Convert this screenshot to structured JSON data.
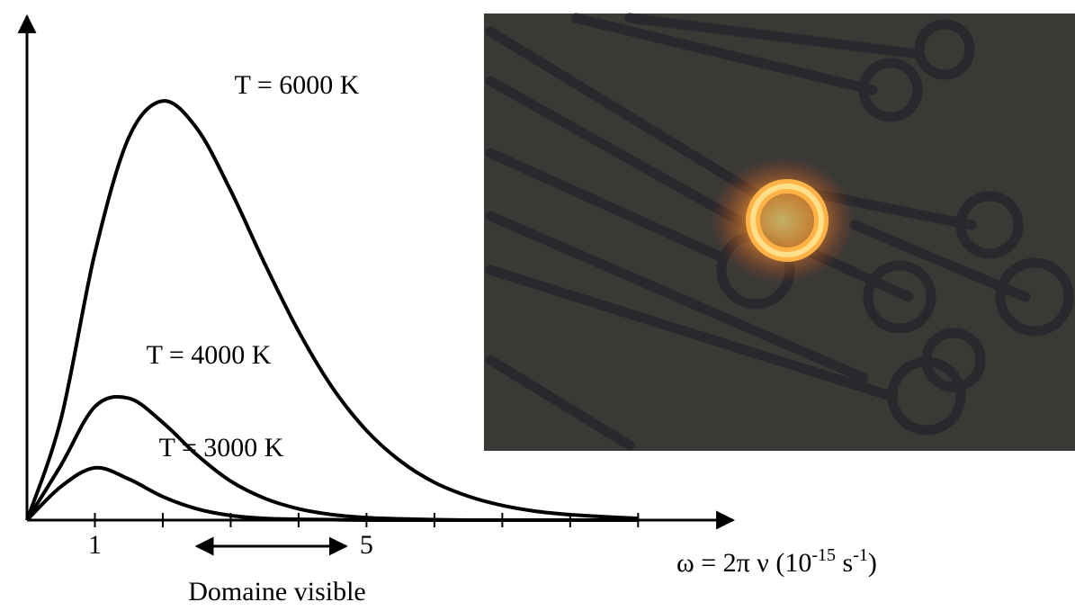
{
  "chart_data": {
    "type": "line",
    "x": [
      0,
      0.5,
      1,
      1.5,
      2,
      2.5,
      3,
      3.5,
      4,
      4.5,
      5,
      5.5,
      6,
      6.5,
      7,
      7.5,
      8,
      8.5,
      9
    ],
    "series": [
      {
        "name": "T = 6000 K",
        "color": "#000000",
        "values": [
          0,
          24.1,
          63.8,
          91.4,
          100.1,
          93.6,
          78.7,
          61.3,
          45.1,
          31.6,
          21.4,
          14.1,
          9.0,
          5.7,
          3.5,
          2.1,
          1.3,
          0.8,
          0.4
        ]
      },
      {
        "name": "T = 4000 K",
        "color": "#000000",
        "values": [
          0,
          13.1,
          27.1,
          29.1,
          23.3,
          15.6,
          9.3,
          5.2,
          2.7,
          1.3,
          0.6,
          0.3,
          0.1,
          0,
          0,
          0,
          0,
          0,
          0
        ]
      },
      {
        "name": "T = 3000 K",
        "color": "#000000",
        "values": [
          0,
          8.0,
          12.5,
          9.8,
          5.6,
          2.7,
          1.1,
          0.4,
          0.2,
          0.1,
          0,
          0,
          0,
          0,
          0,
          0,
          0,
          0,
          0
        ]
      }
    ],
    "xlim": [
      0,
      10.4
    ],
    "ylim": [
      0,
      121
    ],
    "xticks": [
      1,
      {
        "value": 2,
        "label": null
      },
      {
        "value": 3,
        "label": null
      },
      {
        "value": 4,
        "label": null
      },
      5,
      {
        "value": 6,
        "label": null
      },
      {
        "value": 7,
        "label": null
      },
      {
        "value": 8,
        "label": null
      },
      {
        "value": 9,
        "label": null
      }
    ],
    "xlabel": [
      "ω = 2π ν (10",
      "-15",
      " s",
      "-1",
      ")"
    ],
    "visible_range": [
      2.5,
      4.7
    ],
    "visible_label": "Domaine visible"
  }
}
